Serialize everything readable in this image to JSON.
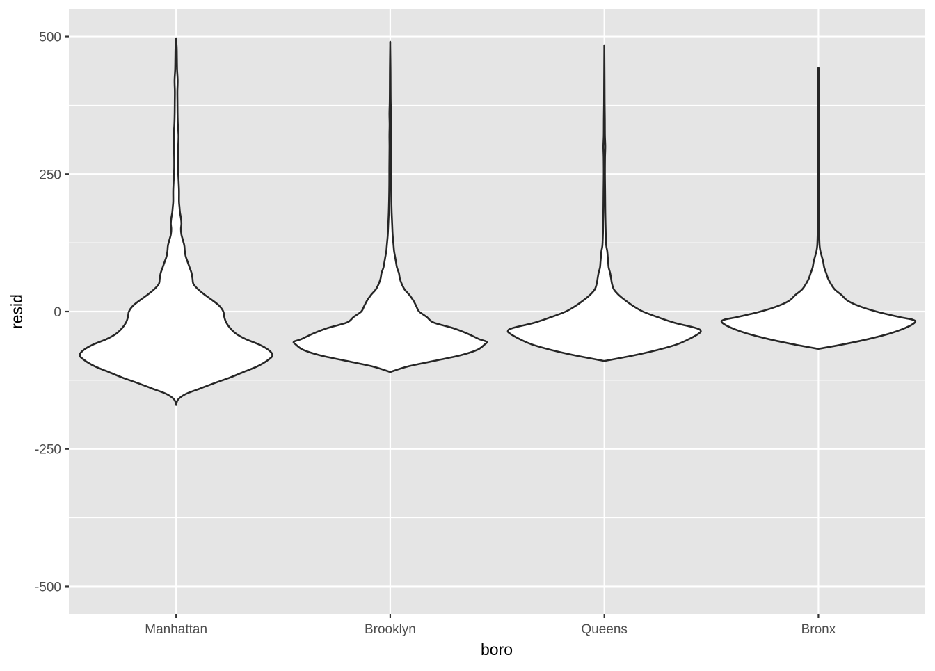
{
  "chart_data": {
    "type": "violin",
    "title": "",
    "xlabel": "boro",
    "ylabel": "resid",
    "categories": [
      "Manhattan",
      "Brooklyn",
      "Queens",
      "Bronx"
    ],
    "ylim": [
      -550,
      550
    ],
    "yticks": [
      -500,
      -250,
      0,
      250,
      500
    ],
    "ytick_labels": [
      "-500",
      "-250",
      "0",
      "250",
      "500"
    ],
    "y_minor_ticks": [
      -375,
      -125,
      125,
      375
    ],
    "grid": true,
    "colors": {
      "panel_background": "#e5e5e5",
      "grid": "#ffffff",
      "violin_fill": "#ffffff",
      "violin_outline": "#262626"
    },
    "violins": [
      {
        "category": "Manhattan",
        "y_range": [
          -170,
          495
        ],
        "profile": [
          [
            -170,
            0.0
          ],
          [
            -160,
            0.02
          ],
          [
            -150,
            0.1
          ],
          [
            -140,
            0.25
          ],
          [
            -130,
            0.4
          ],
          [
            -120,
            0.56
          ],
          [
            -110,
            0.7
          ],
          [
            -100,
            0.84
          ],
          [
            -90,
            0.94
          ],
          [
            -80,
            1.0
          ],
          [
            -70,
            0.96
          ],
          [
            -60,
            0.86
          ],
          [
            -50,
            0.72
          ],
          [
            -40,
            0.62
          ],
          [
            -30,
            0.56
          ],
          [
            -20,
            0.52
          ],
          [
            -10,
            0.5
          ],
          [
            0,
            0.49
          ],
          [
            10,
            0.45
          ],
          [
            20,
            0.38
          ],
          [
            30,
            0.3
          ],
          [
            40,
            0.23
          ],
          [
            50,
            0.18
          ],
          [
            60,
            0.17
          ],
          [
            70,
            0.16
          ],
          [
            80,
            0.14
          ],
          [
            90,
            0.12
          ],
          [
            100,
            0.1
          ],
          [
            110,
            0.09
          ],
          [
            120,
            0.085
          ],
          [
            130,
            0.07
          ],
          [
            140,
            0.055
          ],
          [
            150,
            0.05
          ],
          [
            160,
            0.055
          ],
          [
            170,
            0.05
          ],
          [
            180,
            0.04
          ],
          [
            190,
            0.035
          ],
          [
            200,
            0.03
          ],
          [
            220,
            0.03
          ],
          [
            240,
            0.025
          ],
          [
            260,
            0.02
          ],
          [
            280,
            0.02
          ],
          [
            300,
            0.022
          ],
          [
            320,
            0.025
          ],
          [
            340,
            0.018
          ],
          [
            360,
            0.015
          ],
          [
            380,
            0.014
          ],
          [
            400,
            0.013
          ],
          [
            420,
            0.016
          ],
          [
            440,
            0.01
          ],
          [
            460,
            0.008
          ],
          [
            480,
            0.006
          ],
          [
            495,
            0.0
          ]
        ]
      },
      {
        "category": "Brooklyn",
        "y_range": [
          -110,
          485
        ],
        "profile": [
          [
            -110,
            0.0
          ],
          [
            -100,
            0.18
          ],
          [
            -90,
            0.45
          ],
          [
            -80,
            0.72
          ],
          [
            -70,
            0.9
          ],
          [
            -60,
            0.98
          ],
          [
            -55,
            1.0
          ],
          [
            -50,
            0.92
          ],
          [
            -40,
            0.8
          ],
          [
            -30,
            0.65
          ],
          [
            -20,
            0.45
          ],
          [
            -10,
            0.38
          ],
          [
            0,
            0.3
          ],
          [
            10,
            0.27
          ],
          [
            20,
            0.24
          ],
          [
            30,
            0.2
          ],
          [
            40,
            0.15
          ],
          [
            50,
            0.12
          ],
          [
            60,
            0.1
          ],
          [
            70,
            0.09
          ],
          [
            80,
            0.07
          ],
          [
            90,
            0.06
          ],
          [
            100,
            0.05
          ],
          [
            110,
            0.04
          ],
          [
            120,
            0.035
          ],
          [
            140,
            0.025
          ],
          [
            160,
            0.02
          ],
          [
            180,
            0.015
          ],
          [
            200,
            0.012
          ],
          [
            220,
            0.01
          ],
          [
            240,
            0.009
          ],
          [
            260,
            0.009
          ],
          [
            280,
            0.008
          ],
          [
            300,
            0.007
          ],
          [
            320,
            0.008
          ],
          [
            340,
            0.006
          ],
          [
            360,
            0.008
          ],
          [
            380,
            0.005
          ],
          [
            400,
            0.004
          ],
          [
            440,
            0.003
          ],
          [
            485,
            0.0
          ]
        ]
      },
      {
        "category": "Queens",
        "y_range": [
          -90,
          477
        ],
        "profile": [
          [
            -90,
            0.0
          ],
          [
            -80,
            0.3
          ],
          [
            -70,
            0.55
          ],
          [
            -60,
            0.75
          ],
          [
            -50,
            0.88
          ],
          [
            -40,
            0.98
          ],
          [
            -35,
            1.0
          ],
          [
            -30,
            0.95
          ],
          [
            -20,
            0.72
          ],
          [
            -10,
            0.55
          ],
          [
            0,
            0.4
          ],
          [
            10,
            0.3
          ],
          [
            20,
            0.22
          ],
          [
            30,
            0.15
          ],
          [
            40,
            0.1
          ],
          [
            50,
            0.08
          ],
          [
            60,
            0.07
          ],
          [
            70,
            0.06
          ],
          [
            80,
            0.045
          ],
          [
            90,
            0.04
          ],
          [
            100,
            0.035
          ],
          [
            110,
            0.03
          ],
          [
            120,
            0.02
          ],
          [
            140,
            0.015
          ],
          [
            160,
            0.012
          ],
          [
            180,
            0.01
          ],
          [
            200,
            0.009
          ],
          [
            220,
            0.008
          ],
          [
            250,
            0.006
          ],
          [
            280,
            0.007
          ],
          [
            300,
            0.01
          ],
          [
            320,
            0.006
          ],
          [
            350,
            0.005
          ],
          [
            380,
            0.003
          ],
          [
            420,
            0.002
          ],
          [
            477,
            0.0
          ]
        ]
      },
      {
        "category": "Bronx",
        "y_range": [
          -68,
          442
        ],
        "profile": [
          [
            -68,
            0.0
          ],
          [
            -60,
            0.25
          ],
          [
            -50,
            0.52
          ],
          [
            -40,
            0.74
          ],
          [
            -30,
            0.9
          ],
          [
            -20,
            1.0
          ],
          [
            -15,
            0.98
          ],
          [
            -10,
            0.84
          ],
          [
            0,
            0.6
          ],
          [
            10,
            0.42
          ],
          [
            20,
            0.3
          ],
          [
            30,
            0.24
          ],
          [
            40,
            0.17
          ],
          [
            50,
            0.13
          ],
          [
            60,
            0.1
          ],
          [
            70,
            0.08
          ],
          [
            80,
            0.06
          ],
          [
            90,
            0.05
          ],
          [
            100,
            0.035
          ],
          [
            110,
            0.02
          ],
          [
            120,
            0.012
          ],
          [
            140,
            0.008
          ],
          [
            160,
            0.006
          ],
          [
            180,
            0.005
          ],
          [
            200,
            0.008
          ],
          [
            220,
            0.004
          ],
          [
            260,
            0.003
          ],
          [
            300,
            0.003
          ],
          [
            340,
            0.004
          ],
          [
            360,
            0.007
          ],
          [
            380,
            0.003
          ],
          [
            420,
            0.003
          ],
          [
            440,
            0.006
          ],
          [
            442,
            0.0
          ]
        ]
      }
    ]
  }
}
